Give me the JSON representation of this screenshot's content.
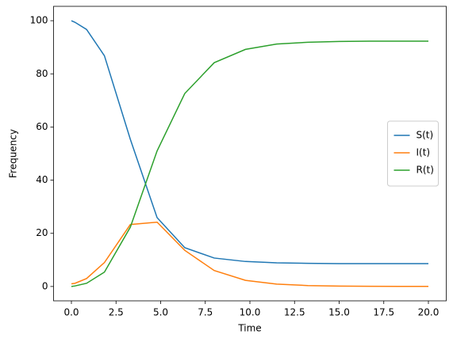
{
  "chart_data": {
    "type": "line",
    "x_label": "Time",
    "y_label": "Frequency",
    "x": [
      0,
      0.2,
      0.85,
      1.85,
      3.3,
      4.8,
      6.35,
      8.0,
      9.75,
      11.5,
      13.25,
      15.0,
      16.7,
      18.4,
      20
    ],
    "series": [
      {
        "name": "S(t)",
        "color": "#1f77b4",
        "values": [
          100,
          99.4,
          96.7,
          86.8,
          55.4,
          25.9,
          14.6,
          10.7,
          9.4,
          8.9,
          8.7,
          8.6,
          8.6,
          8.6,
          8.6
        ]
      },
      {
        "name": "I(t)",
        "color": "#ff7f0e",
        "values": [
          1,
          1.2,
          3,
          9,
          23.3,
          24.2,
          13.6,
          6.0,
          2.3,
          0.9,
          0.35,
          0.15,
          0.07,
          0.03,
          0.02
        ]
      },
      {
        "name": "R(t)",
        "color": "#2ca02c",
        "values": [
          0,
          0.2,
          1.2,
          5.4,
          22.3,
          51,
          72.6,
          84.2,
          89.2,
          91.2,
          91.9,
          92.2,
          92.3,
          92.3,
          92.3
        ]
      }
    ],
    "xlim": [
      -1,
      21
    ],
    "ylim": [
      -5.4,
      105.4
    ],
    "xticks": [
      {
        "value": 0,
        "label": "0.0"
      },
      {
        "value": 2.5,
        "label": "2.5"
      },
      {
        "value": 5,
        "label": "5.0"
      },
      {
        "value": 7.5,
        "label": "7.5"
      },
      {
        "value": 10,
        "label": "10.0"
      },
      {
        "value": 12.5,
        "label": "12.5"
      },
      {
        "value": 15,
        "label": "15.0"
      },
      {
        "value": 17.5,
        "label": "17.5"
      },
      {
        "value": 20,
        "label": "20.0"
      }
    ],
    "yticks": [
      0,
      20,
      40,
      60,
      80,
      100
    ],
    "grid": false,
    "legend": "center right"
  }
}
